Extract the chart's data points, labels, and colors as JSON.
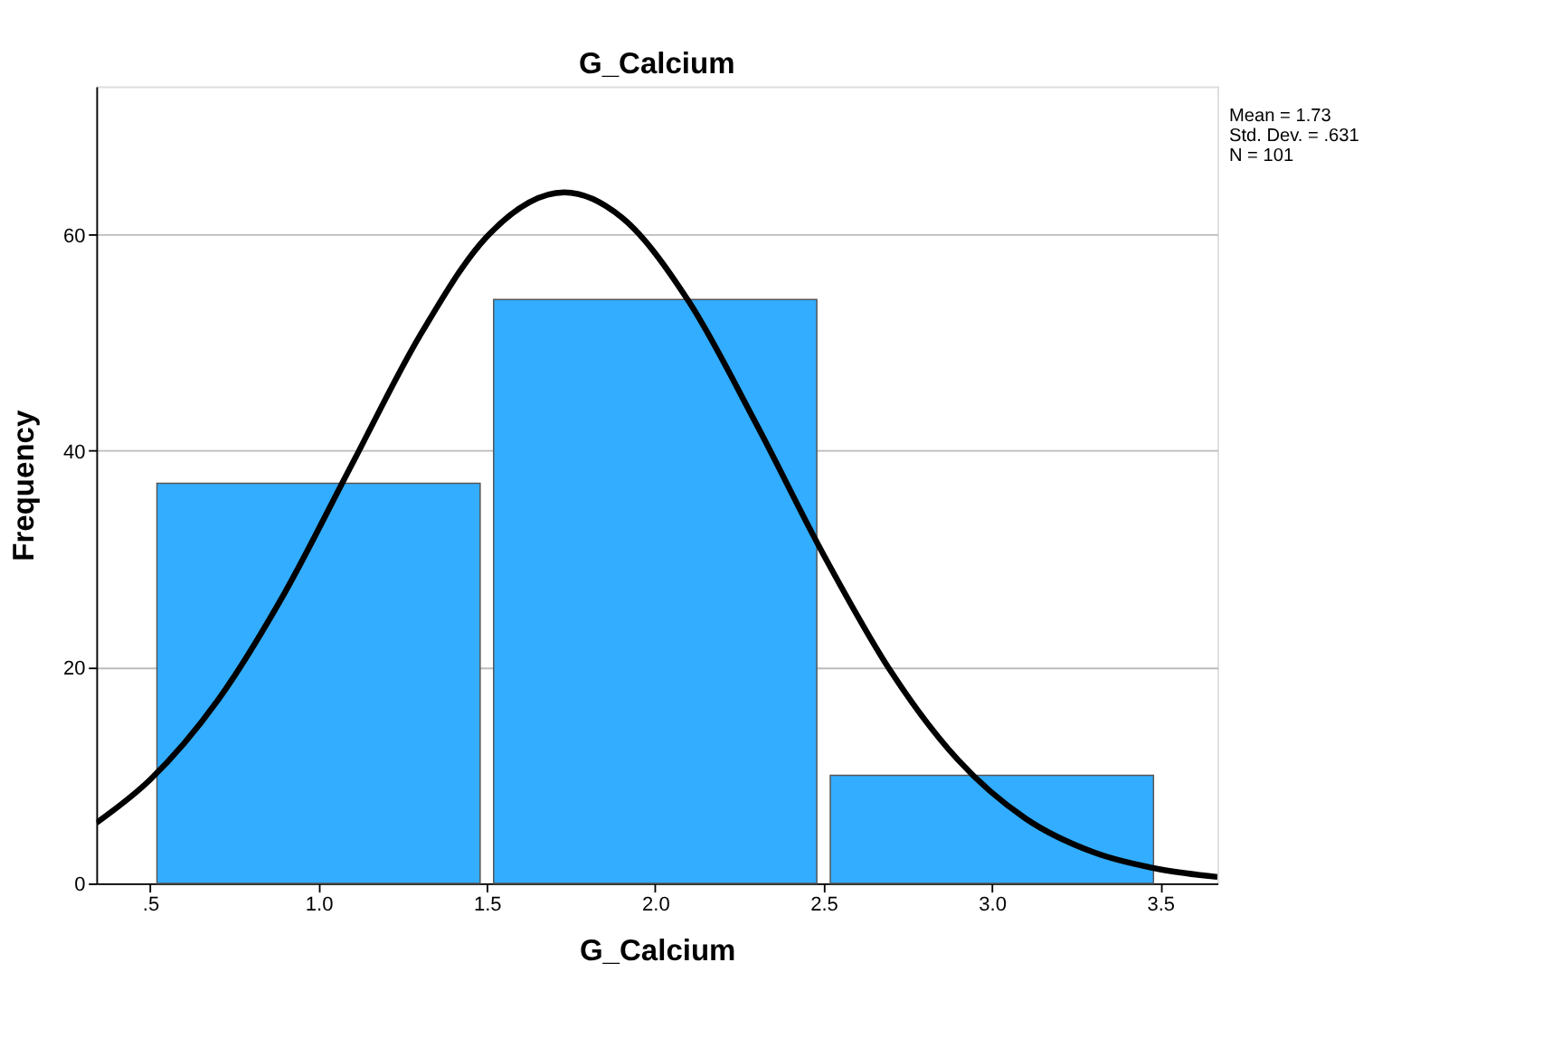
{
  "chart_data": {
    "type": "histogram",
    "title": "G_Calcium",
    "xlabel": "G_Calcium",
    "ylabel": "Frequency",
    "bins": [
      0.5,
      1.5,
      2.5,
      3.5
    ],
    "values": [
      37,
      54,
      10
    ],
    "color": "#33adff",
    "xlim": [
      0.34,
      3.67
    ],
    "ylim": [
      0,
      73.7
    ],
    "xticks": [
      {
        "value": 0.5,
        "label": ".5"
      },
      {
        "value": 1.0,
        "label": "1.0"
      },
      {
        "value": 1.5,
        "label": "1.5"
      },
      {
        "value": 2.0,
        "label": "2.0"
      },
      {
        "value": 2.5,
        "label": "2.5"
      },
      {
        "value": 3.0,
        "label": "3.0"
      },
      {
        "value": 3.5,
        "label": "3.5"
      }
    ],
    "yticks": [
      0,
      20,
      40,
      60
    ],
    "grid": "y",
    "series": [
      {
        "type": "line",
        "color": "#000000",
        "line_style": "solid",
        "marker": "none",
        "x": [
          0.34,
          0.5,
          0.7,
          0.9,
          1.1,
          1.3,
          1.5,
          1.73,
          1.9,
          2.1,
          2.3,
          2.5,
          2.7,
          2.9,
          3.1,
          3.3,
          3.5,
          3.67
        ],
        "values": [
          5.6,
          9.6,
          16.9,
          26.9,
          38.8,
          50.6,
          59.8,
          63.9,
          61.6,
          53.8,
          42.5,
          30.4,
          19.6,
          11.4,
          6.0,
          2.9,
          1.3,
          0.6
        ]
      }
    ],
    "annotations": [
      "Mean = 1.73",
      "Std. Dev. = .631",
      "N = 101"
    ]
  }
}
